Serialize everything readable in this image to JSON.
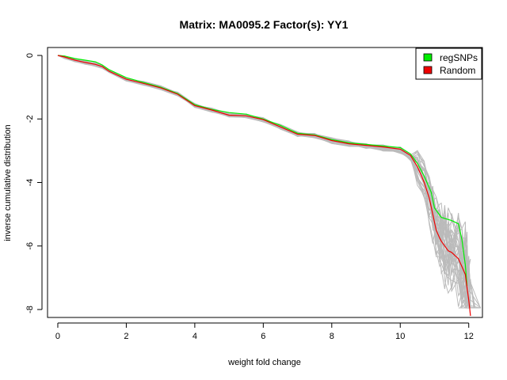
{
  "chart_data": {
    "type": "line",
    "title": "Matrix: MA0095.2 Factor(s): YY1",
    "xlabel": "weight fold change",
    "ylabel": "inverse cumulative distribution",
    "xlim": [
      -0.3,
      12.4
    ],
    "ylim": [
      -8.25,
      0.25
    ],
    "x_ticks": [
      0,
      2,
      4,
      6,
      8,
      10,
      12
    ],
    "y_ticks": [
      0,
      -2,
      -4,
      -6,
      -8
    ],
    "x_tick_labels": [
      "0",
      "2",
      "4",
      "6",
      "8",
      "10",
      "12"
    ],
    "y_tick_labels": [
      "0",
      "-2",
      "-4",
      "-6",
      "-8"
    ],
    "legend": {
      "position": "top-right",
      "entries": [
        {
          "label": "regSNPs",
          "color": "#00ee00"
        },
        {
          "label": "Random",
          "color": "#ee0000"
        }
      ]
    },
    "background_lines": {
      "color": "#bbbbbb",
      "count": 30
    },
    "series": [
      {
        "name": "regSNPs",
        "color": "#00ee00",
        "x": [
          0,
          0.2,
          0.5,
          0.8,
          1.1,
          1.3,
          1.5,
          2.0,
          2.5,
          3.0,
          3.5,
          4.0,
          4.5,
          5.0,
          5.5,
          6.0,
          6.5,
          7.0,
          7.5,
          8.0,
          8.5,
          9.0,
          9.5,
          10.0,
          10.3,
          10.5,
          10.7,
          10.9,
          11.0,
          11.1,
          11.2,
          11.5,
          11.7,
          11.8,
          11.9,
          11.95
        ],
        "y": [
          0,
          -0.02,
          -0.1,
          -0.15,
          -0.2,
          -0.3,
          -0.45,
          -0.7,
          -0.85,
          -1.0,
          -1.2,
          -1.55,
          -1.7,
          -1.8,
          -1.85,
          -2.0,
          -2.2,
          -2.45,
          -2.5,
          -2.65,
          -2.75,
          -2.8,
          -2.85,
          -2.9,
          -3.1,
          -3.4,
          -3.8,
          -4.3,
          -4.8,
          -4.95,
          -5.1,
          -5.2,
          -5.3,
          -5.8,
          -6.6,
          -7.25
        ]
      },
      {
        "name": "Random",
        "color": "#ee0000",
        "x": [
          0,
          0.2,
          0.5,
          0.8,
          1.1,
          1.3,
          1.5,
          2.0,
          2.5,
          3.0,
          3.5,
          4.0,
          4.5,
          5.0,
          5.5,
          6.0,
          6.5,
          7.0,
          7.5,
          8.0,
          8.5,
          9.0,
          9.5,
          10.0,
          10.3,
          10.5,
          10.7,
          10.85,
          10.95,
          11.05,
          11.15,
          11.2,
          11.3,
          11.4,
          11.5,
          11.7,
          11.8,
          11.9,
          11.95,
          12.0,
          12.05
        ],
        "y": [
          0,
          -0.05,
          -0.15,
          -0.22,
          -0.28,
          -0.35,
          -0.5,
          -0.75,
          -0.88,
          -1.02,
          -1.22,
          -1.58,
          -1.72,
          -1.88,
          -1.9,
          -2.02,
          -2.25,
          -2.48,
          -2.52,
          -2.68,
          -2.78,
          -2.83,
          -2.88,
          -2.95,
          -3.15,
          -3.5,
          -4.0,
          -4.5,
          -5.0,
          -5.5,
          -5.75,
          -5.85,
          -6.0,
          -6.15,
          -6.2,
          -6.4,
          -6.65,
          -6.9,
          -7.3,
          -7.7,
          -8.2
        ]
      }
    ]
  }
}
